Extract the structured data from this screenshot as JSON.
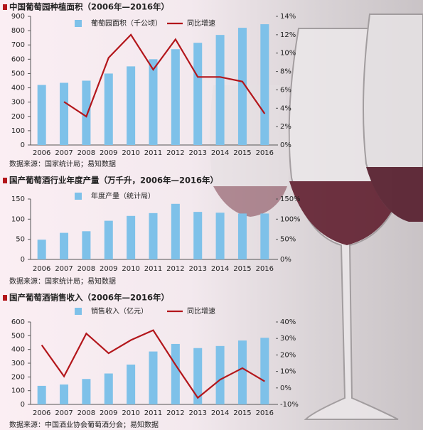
{
  "chart_data": [
    {
      "type": "bar",
      "title": "中国葡萄园种植面积（2006年—2016年）",
      "categories": [
        "2006",
        "2007",
        "2008",
        "2009",
        "2010",
        "2011",
        "2012",
        "2013",
        "2014",
        "2015",
        "2016"
      ],
      "series": [
        {
          "name": "葡萄园面积（千公顷）",
          "type": "bar",
          "color": "#7ec1e9",
          "values": [
            420,
            435,
            450,
            500,
            550,
            600,
            670,
            715,
            770,
            820,
            845
          ]
        },
        {
          "name": "同比增速",
          "type": "line",
          "axis": "y2",
          "color": "#b3161b",
          "values": [
            null,
            4.7,
            3.1,
            9.5,
            12.0,
            8.2,
            11.5,
            7.4,
            7.4,
            6.9,
            3.4
          ]
        }
      ],
      "ylim": [
        0,
        900
      ],
      "yticks": [
        0,
        100,
        200,
        300,
        400,
        500,
        600,
        700,
        800,
        900
      ],
      "y2lim": [
        0,
        14
      ],
      "y2ticks": [
        {
          "value": 0,
          "label": "0%"
        },
        {
          "value": 2,
          "label": "2%"
        },
        {
          "value": 4,
          "label": "4%"
        },
        {
          "value": 6,
          "label": "6%"
        },
        {
          "value": 8,
          "label": "8%"
        },
        {
          "value": 10,
          "label": "10%"
        },
        {
          "value": 12,
          "label": "12%"
        },
        {
          "value": 14,
          "label": "14%"
        }
      ],
      "source": "数据来源：国家统计局；易知数据"
    },
    {
      "type": "bar",
      "title": "国产葡萄酒行业年度产量（万千升，2006年—2016年）",
      "categories": [
        "2006",
        "2007",
        "2008",
        "2009",
        "2010",
        "2011",
        "2012",
        "2013",
        "2014",
        "2015",
        "2016"
      ],
      "series": [
        {
          "name": "年度产量（统计局）",
          "type": "bar",
          "color": "#7ec1e9",
          "values": [
            49,
            66,
            70,
            96,
            108,
            115,
            138,
            118,
            116,
            114,
            114
          ]
        }
      ],
      "ylim": [
        0,
        150
      ],
      "yticks": [
        0,
        50,
        100,
        150
      ],
      "y2lim": [
        0,
        150
      ],
      "y2ticks": [
        {
          "value": 0,
          "label": "0%"
        },
        {
          "value": 50,
          "label": "50%"
        },
        {
          "value": 100,
          "label": "100%"
        },
        {
          "value": 150,
          "label": "150%"
        }
      ],
      "source": "数据来源：国家统计局；易知数据"
    },
    {
      "type": "bar",
      "title": "国产葡萄酒销售收入（2006年—2016年）",
      "categories": [
        "2006",
        "2007",
        "2008",
        "2009",
        "2010",
        "2011",
        "2012",
        "2013",
        "2014",
        "2015",
        "2016"
      ],
      "series": [
        {
          "name": "销售收入（亿元）",
          "type": "bar",
          "color": "#7ec1e9",
          "values": [
            135,
            145,
            185,
            225,
            290,
            385,
            440,
            410,
            425,
            465,
            485
          ]
        },
        {
          "name": "同比增速",
          "type": "line",
          "axis": "y2",
          "color": "#b3161b",
          "values": [
            26,
            7,
            33,
            21,
            29,
            35,
            14,
            -6,
            5,
            12,
            4
          ]
        }
      ],
      "ylim": [
        0,
        600
      ],
      "yticks": [
        0,
        100,
        200,
        300,
        400,
        500,
        600
      ],
      "y2lim": [
        -10,
        40
      ],
      "y2ticks": [
        {
          "value": -10,
          "label": "-10%"
        },
        {
          "value": 0,
          "label": "0%"
        },
        {
          "value": 10,
          "label": "10%"
        },
        {
          "value": 20,
          "label": "20%"
        },
        {
          "value": 30,
          "label": "30%"
        },
        {
          "value": 40,
          "label": "40%"
        }
      ],
      "source": "数据来源：中国酒业协会葡萄酒分会；易知数据"
    }
  ]
}
